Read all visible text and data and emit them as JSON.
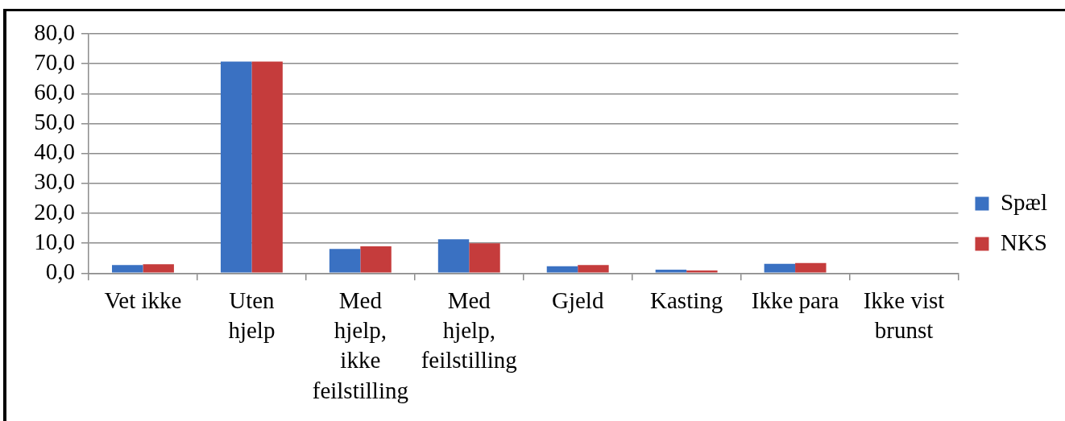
{
  "chart_data": {
    "type": "bar",
    "categories": [
      "Vet ikke",
      "Uten hjelp",
      "Med hjelp, ikke feilstilling",
      "Med hjelp, feilstilling",
      "Gjeld",
      "Kasting",
      "Ikke para",
      "Ikke vist brunst"
    ],
    "series": [
      {
        "name": "Spæl",
        "color": "#3a71c2",
        "values": [
          2.7,
          70.7,
          8.1,
          11.3,
          2.3,
          1.2,
          3.1,
          0
        ]
      },
      {
        "name": "NKS",
        "color": "#c53c3c",
        "values": [
          3.0,
          70.7,
          9.0,
          10.0,
          2.7,
          0.9,
          3.4,
          0
        ]
      }
    ],
    "ylim": [
      0,
      80
    ],
    "yticks": [
      {
        "value": 0,
        "label": "0,0"
      },
      {
        "value": 10,
        "label": "10,0"
      },
      {
        "value": 20,
        "label": "20,0"
      },
      {
        "value": 30,
        "label": "30,0"
      },
      {
        "value": 40,
        "label": "40,0"
      },
      {
        "value": 50,
        "label": "50,0"
      },
      {
        "value": 60,
        "label": "60,0"
      },
      {
        "value": 70,
        "label": "70,0"
      },
      {
        "value": 80,
        "label": "80,0"
      }
    ],
    "grid": "y",
    "legend": "right"
  }
}
